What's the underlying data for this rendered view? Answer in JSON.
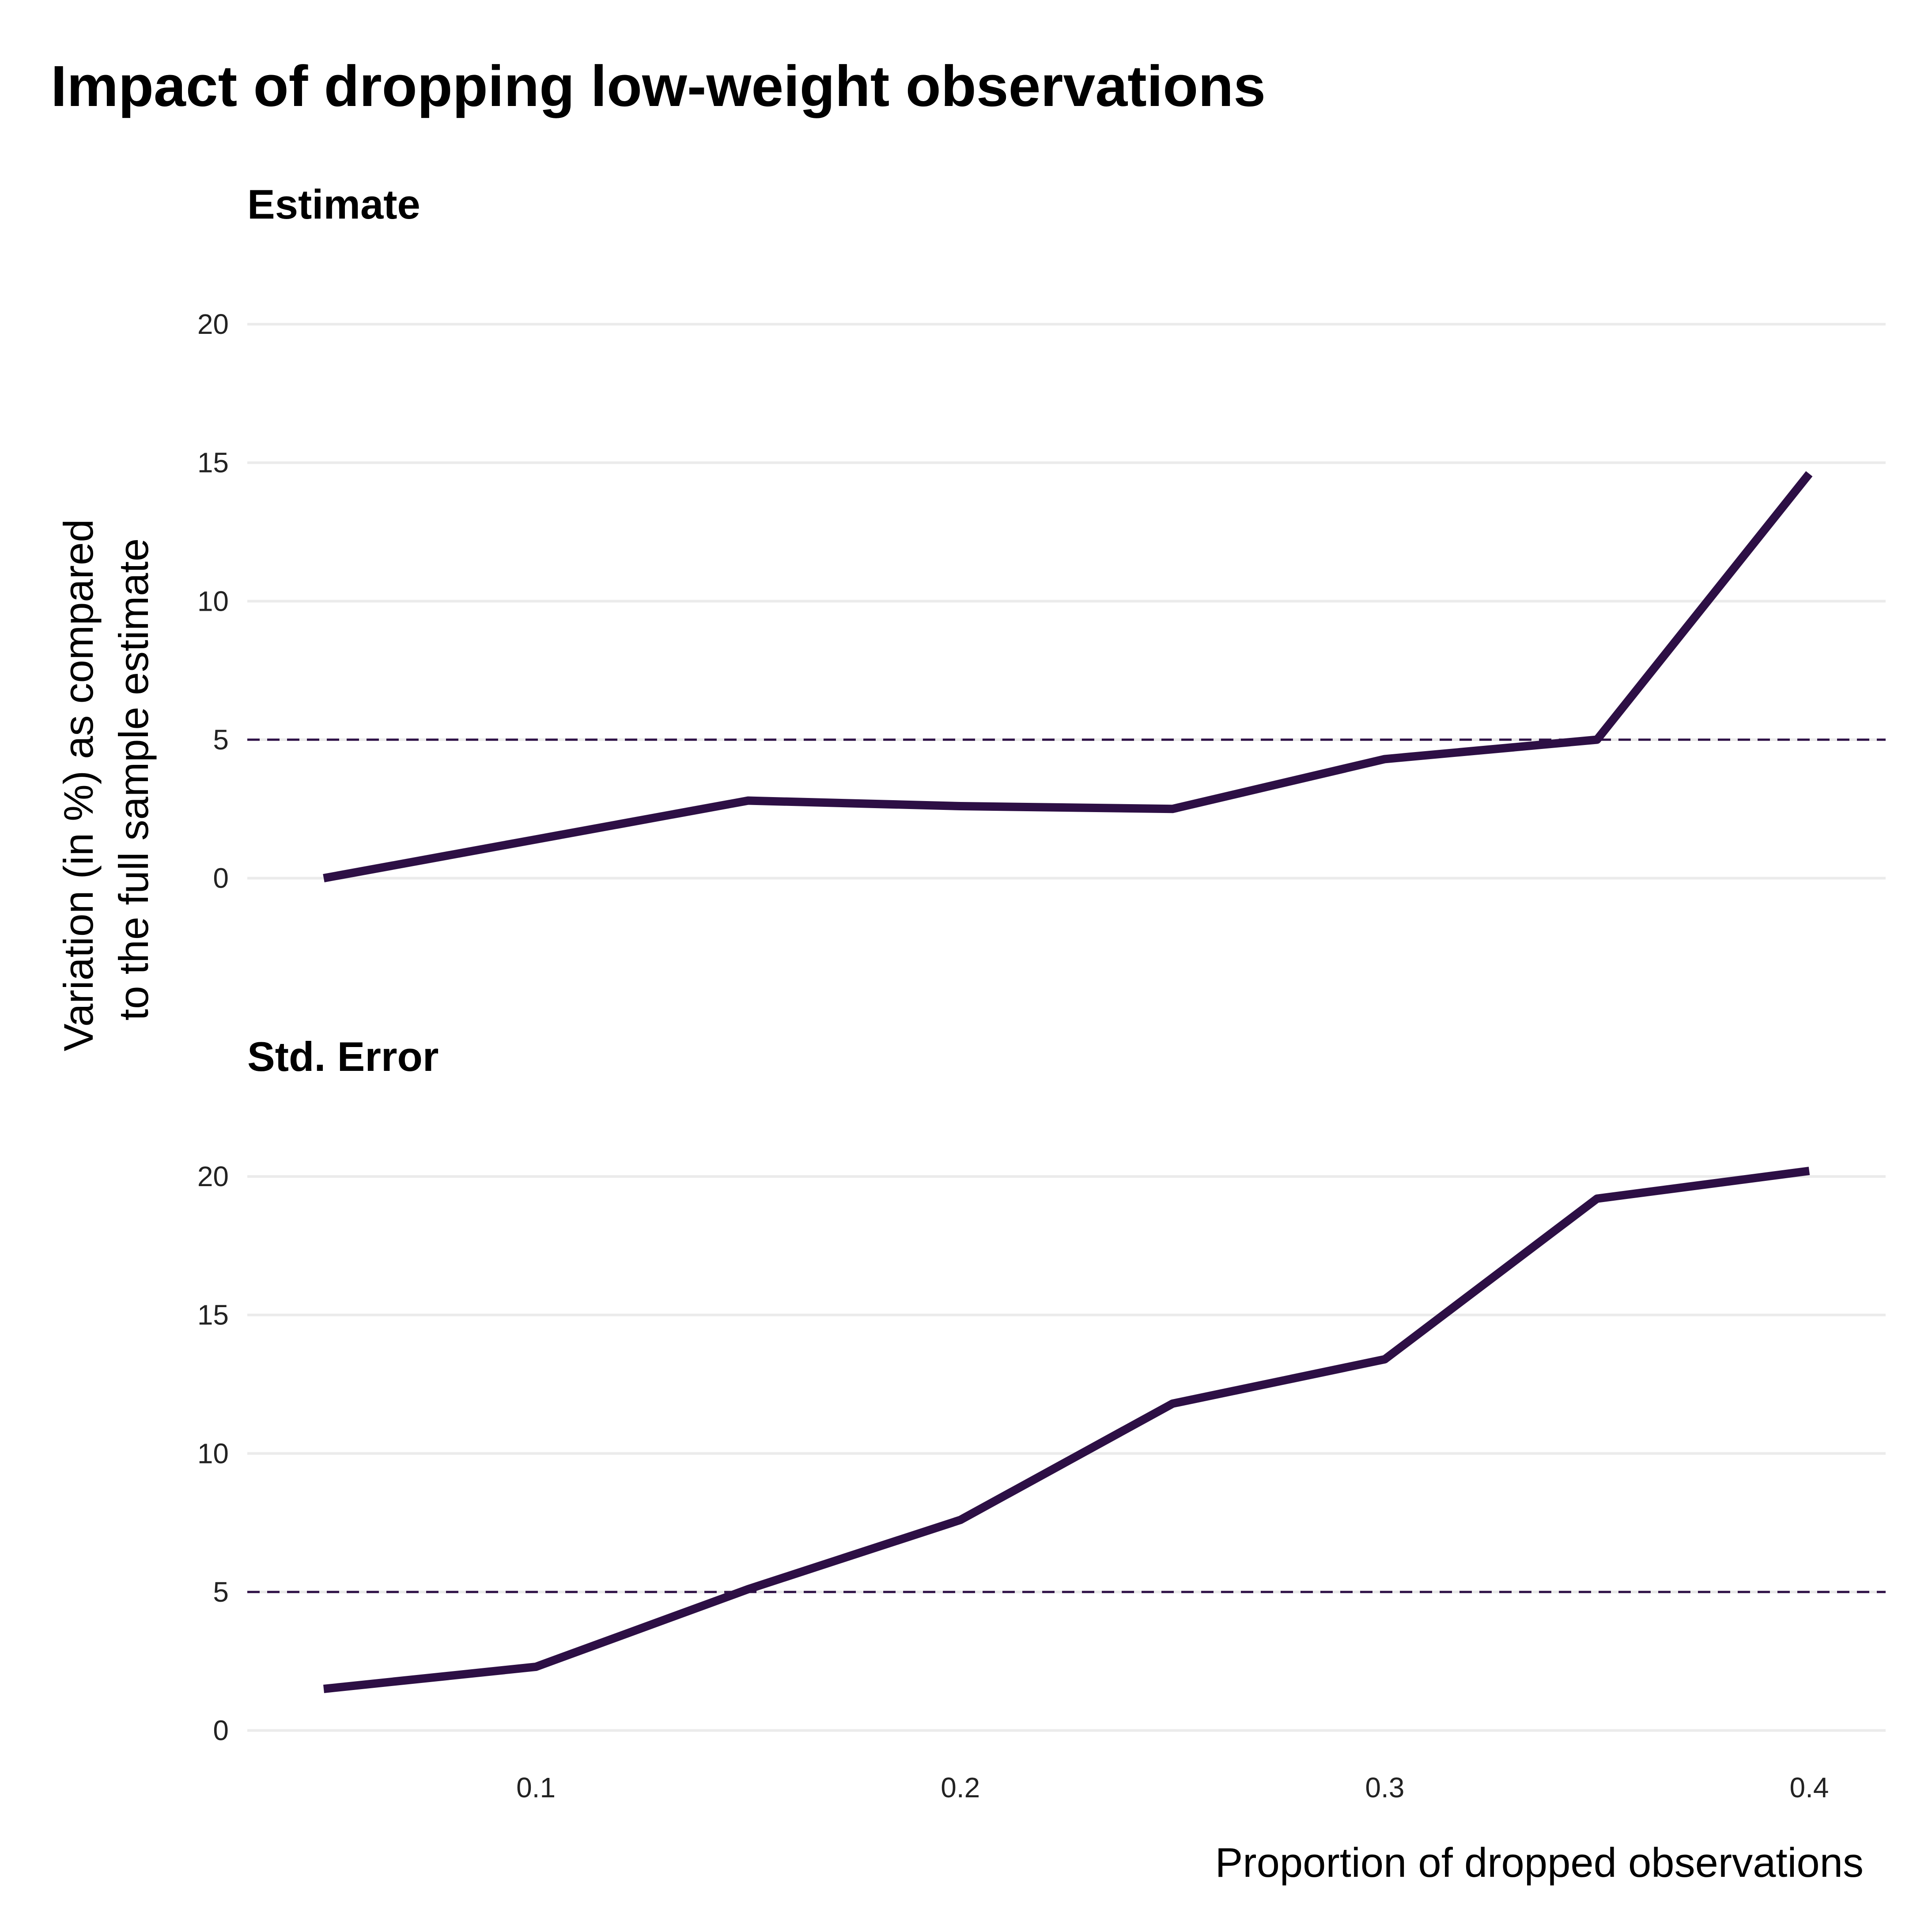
{
  "title": "Impact of dropping low-weight observations",
  "xlabel": "Proportion of dropped observations",
  "ylabel_lines": [
    "Variation (in %) as compared",
    "to the full sample estimate"
  ],
  "colors": {
    "line": "#2d0f45",
    "reference": "#2d0f45",
    "grid": "#ebebeb"
  },
  "chart_data": {
    "type": "line",
    "facet_layout": "stacked-vertical",
    "grid": true,
    "legend": "none",
    "x_ticks": [
      0.1,
      0.2,
      0.3,
      0.4
    ],
    "xlim": [
      0.032,
      0.418
    ],
    "panels": [
      {
        "title": "Estimate",
        "ylim": [
          -0.5,
          21.5
        ],
        "y_ticks": [
          0,
          5,
          10,
          15,
          20
        ],
        "reference_line": 5,
        "x": [
          0.05,
          0.1,
          0.15,
          0.2,
          0.25,
          0.3,
          0.35,
          0.4
        ],
        "values": [
          0.0,
          1.4,
          2.8,
          2.6,
          2.5,
          4.3,
          5.0,
          14.6
        ]
      },
      {
        "title": "Std. Error",
        "ylim": [
          -0.5,
          21.5
        ],
        "y_ticks": [
          0,
          5,
          10,
          15,
          20
        ],
        "reference_line": 5,
        "x": [
          0.05,
          0.1,
          0.15,
          0.2,
          0.25,
          0.3,
          0.35,
          0.4
        ],
        "values": [
          1.5,
          2.3,
          5.1,
          7.6,
          11.8,
          13.4,
          19.2,
          20.2
        ]
      }
    ]
  }
}
